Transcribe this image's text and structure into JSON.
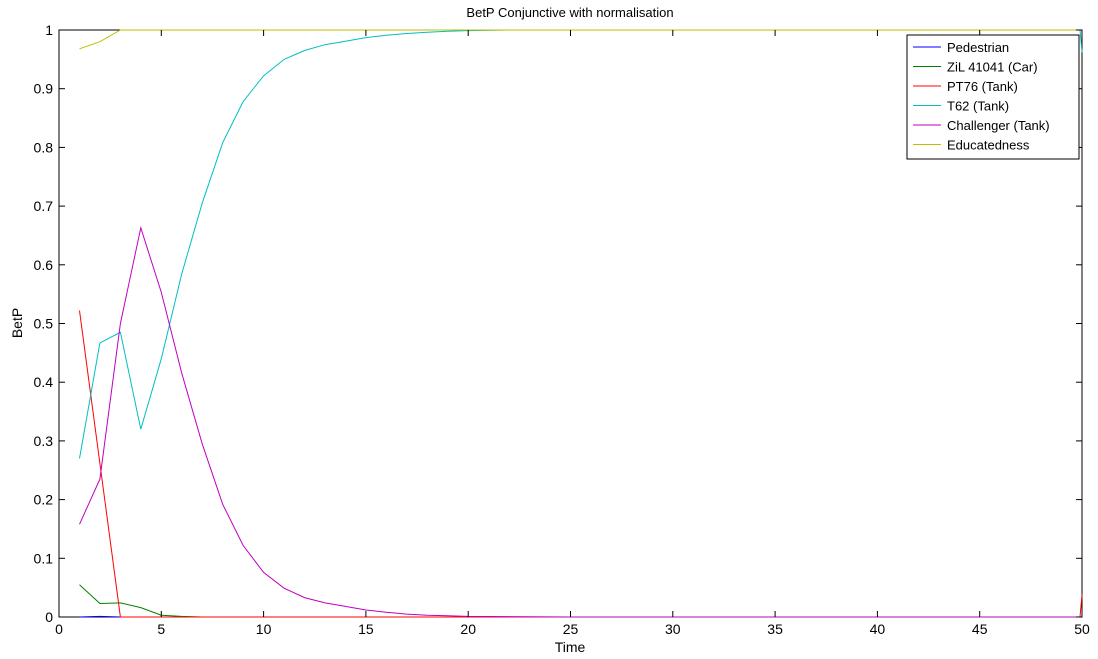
{
  "chart_data": {
    "type": "line",
    "title": "BetP Conjunctive with normalisation",
    "xlabel": "Time",
    "ylabel": "BetP",
    "xlim": [
      0,
      50
    ],
    "ylim": [
      0,
      1
    ],
    "xticks": [
      0,
      5,
      10,
      15,
      20,
      25,
      30,
      35,
      40,
      45,
      50
    ],
    "yticks": [
      0,
      0.1,
      0.2,
      0.3,
      0.4,
      0.5,
      0.6,
      0.7,
      0.8,
      0.9,
      1
    ],
    "xtick_labels": [
      "0",
      "5",
      "10",
      "15",
      "20",
      "25",
      "30",
      "35",
      "40",
      "45",
      "50"
    ],
    "ytick_labels": [
      "0",
      "0.1",
      "0.2",
      "0.3",
      "0.4",
      "0.5",
      "0.6",
      "0.7",
      "0.8",
      "0.9",
      "1"
    ],
    "grid": false,
    "legend_position": "top-right",
    "series": [
      {
        "name": "Pedestrian",
        "color": "#0000ff",
        "x": [
          1,
          2,
          3,
          4,
          5,
          10,
          20,
          30,
          40,
          50
        ],
        "y": [
          0.0,
          0.001,
          0.0,
          0.0,
          0.0,
          0.0,
          0.0,
          0.0,
          0.0,
          0.0
        ]
      },
      {
        "name": "ZiL 41041 (Car)",
        "color": "#008000",
        "x": [
          1,
          2,
          3,
          4,
          5,
          6,
          7,
          10,
          20,
          30,
          40,
          50
        ],
        "y": [
          0.055,
          0.023,
          0.024,
          0.016,
          0.003,
          0.001,
          0.0,
          0.0,
          0.0,
          0.0,
          0.0,
          0.0
        ]
      },
      {
        "name": "PT76 (Tank)",
        "color": "#ff0000",
        "x": [
          1,
          3,
          10,
          20,
          30,
          40,
          49.9,
          50
        ],
        "y": [
          0.522,
          0.0,
          0.0,
          0.0,
          0.0,
          0.0,
          0.0,
          0.038
        ]
      },
      {
        "name": "T62 (Tank)",
        "color": "#00bfbf",
        "x": [
          1,
          2,
          3,
          4,
          5,
          6,
          7,
          8,
          9,
          10,
          11,
          12,
          13,
          14,
          15,
          16,
          17,
          18,
          19,
          20,
          22,
          25,
          30,
          40,
          49.9,
          50
        ],
        "y": [
          0.27,
          0.467,
          0.485,
          0.32,
          0.44,
          0.585,
          0.705,
          0.808,
          0.878,
          0.922,
          0.95,
          0.965,
          0.975,
          0.981,
          0.987,
          0.991,
          0.994,
          0.996,
          0.998,
          0.999,
          1.0,
          1.0,
          1.0,
          1.0,
          1.0,
          0.962
        ]
      },
      {
        "name": "Challenger (Tank)",
        "color": "#bf00bf",
        "x": [
          1,
          2,
          3,
          4,
          5,
          6,
          7,
          8,
          9,
          10,
          11,
          12,
          13,
          14,
          15,
          16,
          17,
          18,
          19,
          20,
          25,
          30,
          40,
          50
        ],
        "y": [
          0.158,
          0.235,
          0.5,
          0.663,
          0.553,
          0.415,
          0.295,
          0.192,
          0.122,
          0.076,
          0.049,
          0.033,
          0.024,
          0.018,
          0.012,
          0.008,
          0.005,
          0.003,
          0.002,
          0.001,
          0.0,
          0.0,
          0.0,
          0.0
        ]
      },
      {
        "name": "Educatedness",
        "color": "#bfbf00",
        "x": [
          1,
          2,
          3,
          10,
          20,
          30,
          40,
          50
        ],
        "y": [
          0.968,
          0.98,
          1.0,
          1.0,
          1.0,
          1.0,
          1.0,
          1.0
        ]
      }
    ]
  }
}
